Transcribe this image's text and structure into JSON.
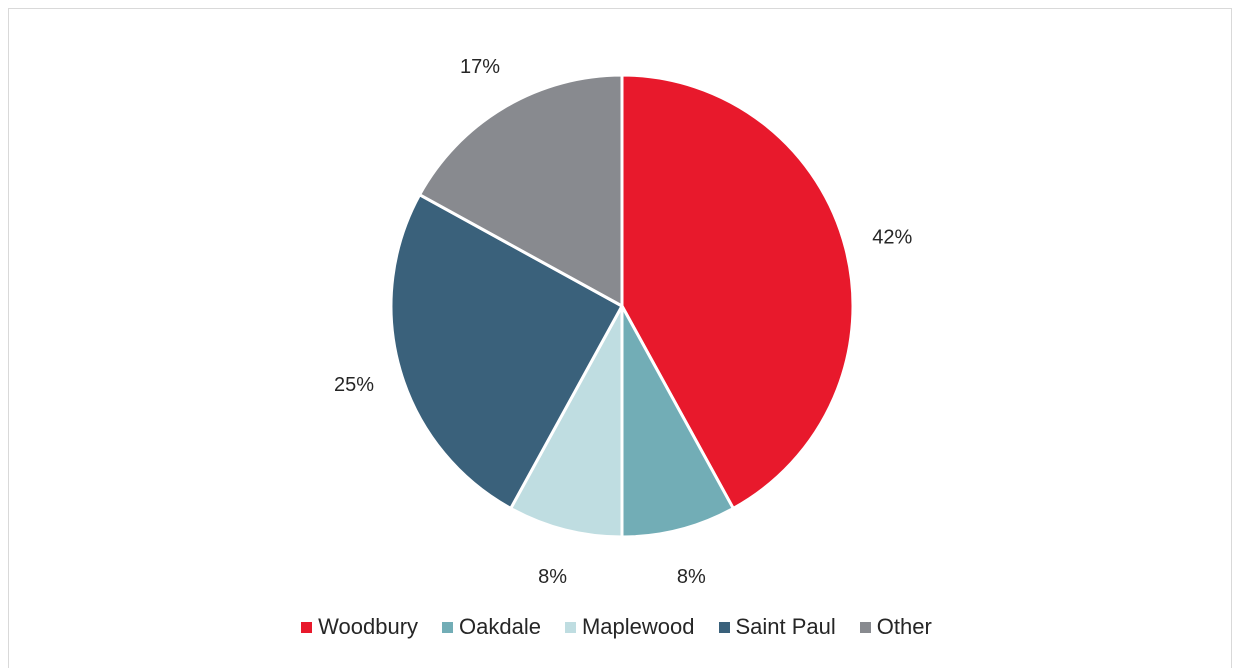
{
  "chart_data": {
    "type": "pie",
    "title": "",
    "slices": [
      {
        "name": "Woodbury",
        "value": 42,
        "label": "42%",
        "color": "#e8192c"
      },
      {
        "name": "Oakdale",
        "value": 8,
        "label": "8%",
        "color": "#72adb6"
      },
      {
        "name": "Maplewood",
        "value": 8,
        "label": "8%",
        "color": "#bfdde1"
      },
      {
        "name": "Saint Paul",
        "value": 25,
        "label": "25%",
        "color": "#3a617b"
      },
      {
        "name": "Other",
        "value": 17,
        "label": "17%",
        "color": "#888a8f"
      }
    ],
    "legend_position": "bottom",
    "start_angle": "top",
    "direction": "clockwise"
  }
}
